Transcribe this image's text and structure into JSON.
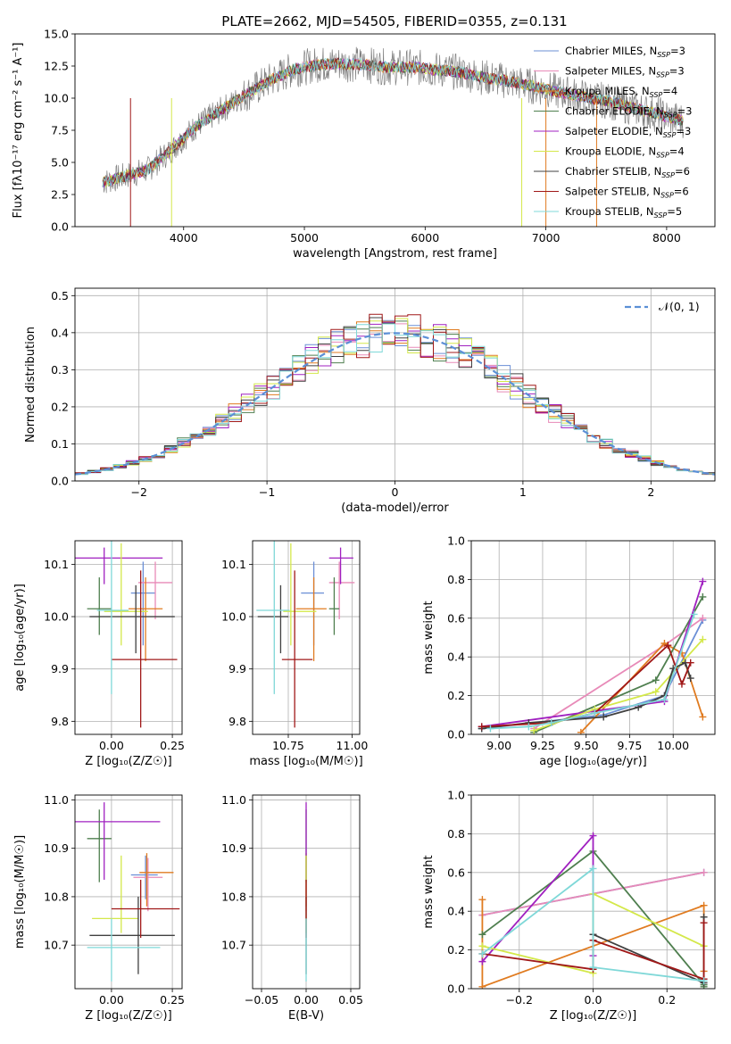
{
  "figure": {
    "title": "PLATE=2662, MJD=54505, FIBERID=0355, z=0.131"
  },
  "models": [
    {
      "name": "Chabrier MILES",
      "nssp": "3",
      "color": "#6b8fd6"
    },
    {
      "name": "Salpeter MILES",
      "nssp": "3",
      "color": "#e88ab8"
    },
    {
      "name": "Kroupa MILES",
      "nssp": "4",
      "color": "#e07b20"
    },
    {
      "name": "Chabrier ELODIE",
      "nssp": "3",
      "color": "#4f7f4f"
    },
    {
      "name": "Salpeter ELODIE",
      "nssp": "3",
      "color": "#a020c0"
    },
    {
      "name": "Kroupa ELODIE",
      "nssp": "4",
      "color": "#d4e84a"
    },
    {
      "name": "Chabrier STELIB",
      "nssp": "6",
      "color": "#404040"
    },
    {
      "name": "Salpeter STELIB",
      "nssp": "6",
      "color": "#a01818"
    },
    {
      "name": "Kroupa STELIB",
      "nssp": "5",
      "color": "#7fd8d8"
    }
  ],
  "chart_data": [
    {
      "type": "line",
      "panel": "spectrum",
      "title": "PLATE=2662, MJD=54505, FIBERID=0355, z=0.131",
      "xlabel": "wavelength [Angstrom, rest frame]",
      "ylabel": "Flux [fλ10⁻¹⁷ erg cm⁻² s⁻¹ A⁻¹]",
      "xlim": [
        3100,
        8400
      ],
      "ylim": [
        0,
        15
      ],
      "xticks": [
        "4000",
        "5000",
        "6000",
        "7000",
        "8000"
      ],
      "yticks": [
        "0.0",
        "2.5",
        "5.0",
        "7.5",
        "10.0",
        "12.5",
        "15.0"
      ],
      "legend": "top-right",
      "data_envelope": {
        "x": [
          3350,
          3500,
          3700,
          3900,
          4100,
          4300,
          4500,
          4700,
          4900,
          5100,
          5300,
          5500,
          5700,
          5900,
          6100,
          6300,
          6500,
          6700,
          6900,
          7100,
          7300,
          7500,
          7700,
          7900,
          8100
        ],
        "y": [
          3.5,
          3.9,
          4.4,
          6.0,
          7.8,
          9.0,
          10.2,
          11.3,
          12.2,
          12.6,
          12.7,
          12.6,
          12.4,
          12.4,
          12.2,
          12.0,
          11.6,
          11.3,
          10.9,
          10.5,
          10.1,
          9.8,
          9.3,
          8.8,
          8.3
        ]
      }
    },
    {
      "type": "line",
      "panel": "residual-histogram",
      "xlabel": "(data-model)/error",
      "ylabel": "Normed distribution",
      "xlim": [
        -2.5,
        2.5
      ],
      "ylim": [
        0,
        0.52
      ],
      "xticks": [
        "−2",
        "−1",
        "0",
        "1",
        "2"
      ],
      "yticks": [
        "0.0",
        "0.1",
        "0.2",
        "0.3",
        "0.4",
        "0.5"
      ],
      "grid": true,
      "legend": "top-right",
      "reference_curve": {
        "name": "𝒩(0, 1)",
        "mean": 0,
        "sigma": 1,
        "style": "dashed"
      }
    },
    {
      "type": "scatter",
      "panel": "age-vs-Z",
      "xlabel": "Z [log₁₀(Z/Z☉)]",
      "ylabel": "age  [log₁₀(age/yr)]",
      "xlim": [
        -0.15,
        0.29
      ],
      "ylim": [
        9.775,
        10.145
      ],
      "xticks": [
        "0.00",
        "0.25"
      ],
      "yticks": [
        "9.8",
        "9.9",
        "10.0",
        "10.1"
      ],
      "grid": true,
      "points": [
        {
          "model": "Chabrier MILES",
          "x": 0.13,
          "xerr": [
            0.05,
            0.05
          ],
          "y": 10.045,
          "yerr": [
            0.1,
            0.06
          ]
        },
        {
          "model": "Salpeter MILES",
          "x": 0.18,
          "xerr": [
            0.07,
            0.07
          ],
          "y": 10.065,
          "yerr": [
            0.07,
            0.04
          ]
        },
        {
          "model": "Kroupa MILES",
          "x": 0.14,
          "xerr": [
            0.07,
            0.07
          ],
          "y": 10.015,
          "yerr": [
            0.1,
            0.06
          ]
        },
        {
          "model": "Chabrier ELODIE",
          "x": -0.05,
          "xerr": [
            0.05,
            0.05
          ],
          "y": 10.015,
          "yerr": [
            0.05,
            0.06
          ]
        },
        {
          "model": "Salpeter ELODIE",
          "x": -0.03,
          "xerr": [
            0.13,
            0.24
          ],
          "y": 10.112,
          "yerr": [
            0.05,
            0.02
          ]
        },
        {
          "model": "Kroupa ELODIE",
          "x": 0.04,
          "xerr": [
            0.07,
            0.11
          ],
          "y": 10.01,
          "yerr": [
            0.065,
            0.13
          ]
        },
        {
          "model": "Chabrier STELIB",
          "x": 0.1,
          "xerr": [
            0.19,
            0.16
          ],
          "y": 10.0,
          "yerr": [
            0.07,
            0.06
          ]
        },
        {
          "model": "Salpeter STELIB",
          "x": 0.12,
          "xerr": [
            0.12,
            0.15
          ],
          "y": 9.918,
          "yerr": [
            0.13,
            0.17
          ]
        },
        {
          "model": "Kroupa STELIB",
          "x": 0.0,
          "xerr": [
            0.06,
            0.07
          ],
          "y": 10.012,
          "yerr": [
            0.16,
            0.15
          ]
        }
      ]
    },
    {
      "type": "scatter",
      "panel": "age-vs-mass",
      "xlabel": "mass [log₁₀(M/M☉)]",
      "ylabel": "",
      "xlim": [
        10.61,
        11.03
      ],
      "ylim": [
        9.775,
        10.145
      ],
      "xticks": [
        "10.75",
        "11.00"
      ],
      "yticks": [
        "9.8",
        "9.9",
        "10.0",
        "10.1"
      ],
      "grid": true,
      "points": [
        {
          "model": "Chabrier MILES",
          "x": 10.85,
          "xerr": [
            0.05,
            0.04
          ],
          "y": 10.045,
          "yerr": [
            0.1,
            0.06
          ]
        },
        {
          "model": "Salpeter MILES",
          "x": 10.95,
          "xerr": [
            0.04,
            0.06
          ],
          "y": 10.065,
          "yerr": [
            0.07,
            0.04
          ]
        },
        {
          "model": "Kroupa MILES",
          "x": 10.85,
          "xerr": [
            0.07,
            0.05
          ],
          "y": 10.015,
          "yerr": [
            0.1,
            0.06
          ]
        },
        {
          "model": "Chabrier ELODIE",
          "x": 10.93,
          "xerr": [
            0.02,
            0.02
          ],
          "y": 10.015,
          "yerr": [
            0.05,
            0.06
          ]
        },
        {
          "model": "Salpeter ELODIE",
          "x": 10.955,
          "xerr": [
            0.045,
            0.05
          ],
          "y": 10.112,
          "yerr": [
            0.05,
            0.02
          ]
        },
        {
          "model": "Kroupa ELODIE",
          "x": 10.76,
          "xerr": [
            0.03,
            0.1
          ],
          "y": 10.01,
          "yerr": [
            0.065,
            0.13
          ]
        },
        {
          "model": "Chabrier STELIB",
          "x": 10.72,
          "xerr": [
            0.09,
            0.03
          ],
          "y": 10.0,
          "yerr": [
            0.07,
            0.06
          ]
        },
        {
          "model": "Salpeter STELIB",
          "x": 10.775,
          "xerr": [
            0.05,
            0.07
          ],
          "y": 9.918,
          "yerr": [
            0.13,
            0.17
          ]
        },
        {
          "model": "Kroupa STELIB",
          "x": 10.695,
          "xerr": [
            0.07,
            0.06
          ],
          "y": 10.012,
          "yerr": [
            0.16,
            0.15
          ]
        }
      ]
    },
    {
      "type": "line",
      "panel": "massweight-vs-age",
      "xlabel": "age  [log₁₀(age/yr)]",
      "ylabel": "mass weight",
      "xlim": [
        8.84,
        10.24
      ],
      "ylim": [
        0,
        1
      ],
      "xticks": [
        "9.00",
        "9.25",
        "9.50",
        "9.75",
        "10.00"
      ],
      "yticks": [
        "0.0",
        "0.2",
        "0.4",
        "0.6",
        "0.8",
        "1.0"
      ],
      "grid": true,
      "series": [
        {
          "model": "Chabrier MILES",
          "x": [
            8.9,
            9.6,
            9.95,
            10.17
          ],
          "y": [
            0.03,
            0.1,
            0.2,
            0.59
          ]
        },
        {
          "model": "Salpeter MILES",
          "x": [
            9.2,
            9.95,
            10.17
          ],
          "y": [
            0.03,
            0.46,
            0.6
          ]
        },
        {
          "model": "Kroupa MILES",
          "x": [
            9.47,
            9.95,
            10.05,
            10.17
          ],
          "y": [
            0.01,
            0.47,
            0.42,
            0.09
          ]
        },
        {
          "model": "Chabrier ELODIE",
          "x": [
            9.2,
            9.9,
            10.17
          ],
          "y": [
            0.01,
            0.28,
            0.71
          ]
        },
        {
          "model": "Salpeter ELODIE",
          "x": [
            8.9,
            9.95,
            10.17
          ],
          "y": [
            0.04,
            0.17,
            0.79
          ]
        },
        {
          "model": "Kroupa ELODIE",
          "x": [
            9.2,
            9.55,
            9.9,
            10.17
          ],
          "y": [
            0.02,
            0.13,
            0.22,
            0.49
          ]
        },
        {
          "model": "Chabrier STELIB",
          "x": [
            8.9,
            9.17,
            9.6,
            9.8,
            9.95,
            10.0,
            10.07,
            10.1
          ],
          "y": [
            0.03,
            0.06,
            0.09,
            0.14,
            0.2,
            0.34,
            0.37,
            0.29
          ]
        },
        {
          "model": "Salpeter STELIB",
          "x": [
            8.9,
            9.3,
            9.55,
            9.97,
            10.05,
            10.1
          ],
          "y": [
            0.04,
            0.06,
            0.11,
            0.46,
            0.26,
            0.37
          ]
        },
        {
          "model": "Kroupa STELIB",
          "x": [
            8.95,
            9.17,
            9.3,
            9.55,
            9.95,
            10.12
          ],
          "y": [
            0.03,
            0.04,
            0.06,
            0.11,
            0.18,
            0.62
          ]
        }
      ]
    },
    {
      "type": "scatter",
      "panel": "mass-vs-Z",
      "xlabel": "Z [log₁₀(Z/Z☉)]",
      "ylabel": "mass [log₁₀(M/M☉)]",
      "xlim": [
        -0.15,
        0.29
      ],
      "ylim": [
        10.61,
        11.01
      ],
      "xticks": [
        "0.00",
        "0.25"
      ],
      "yticks": [
        "10.7",
        "10.8",
        "10.9",
        "11.0"
      ],
      "grid": true,
      "points": [
        {
          "model": "Chabrier MILES",
          "x": 0.14,
          "xerr": [
            0.06,
            0.05
          ],
          "y": 10.845,
          "yerr": [
            0.05,
            0.04
          ]
        },
        {
          "model": "Salpeter MILES",
          "x": 0.15,
          "xerr": [
            0.06,
            0.06
          ],
          "y": 10.84,
          "yerr": [
            0.07,
            0.04
          ]
        },
        {
          "model": "Kroupa MILES",
          "x": 0.145,
          "xerr": [
            0.03,
            0.11
          ],
          "y": 10.85,
          "yerr": [
            0.07,
            0.04
          ]
        },
        {
          "model": "Chabrier ELODIE",
          "x": -0.05,
          "xerr": [
            0.05,
            0.05
          ],
          "y": 10.92,
          "yerr": [
            0.09,
            0.06
          ]
        },
        {
          "model": "Salpeter ELODIE",
          "x": -0.03,
          "xerr": [
            0.13,
            0.23
          ],
          "y": 10.955,
          "yerr": [
            0.12,
            0.04
          ]
        },
        {
          "model": "Kroupa ELODIE",
          "x": 0.04,
          "xerr": [
            0.12,
            0.07
          ],
          "y": 10.755,
          "yerr": [
            0.03,
            0.13
          ]
        },
        {
          "model": "Chabrier STELIB",
          "x": 0.11,
          "xerr": [
            0.2,
            0.15
          ],
          "y": 10.72,
          "yerr": [
            0.08,
            0.08
          ]
        },
        {
          "model": "Salpeter STELIB",
          "x": 0.12,
          "xerr": [
            0.12,
            0.16
          ],
          "y": 10.775,
          "yerr": [
            0.06,
            0.06
          ]
        },
        {
          "model": "Kroupa STELIB",
          "x": 0.0,
          "xerr": [
            0.1,
            0.2
          ],
          "y": 10.695,
          "yerr": [
            0.07,
            0.06
          ]
        }
      ]
    },
    {
      "type": "scatter",
      "panel": "mass-vs-ebv",
      "xlabel": "E(B-V)",
      "ylabel": "",
      "xlim": [
        -0.06,
        0.06
      ],
      "ylim": [
        10.61,
        11.01
      ],
      "xticks": [
        "−0.05",
        "0.00",
        "0.05"
      ],
      "yticks": [
        "10.7",
        "10.8",
        "10.9",
        "11.0"
      ],
      "grid": true,
      "points": [
        {
          "model": "Chabrier MILES",
          "x": 0,
          "xerr": [
            0,
            0
          ],
          "y": 10.845,
          "yerr": [
            0.05,
            0.04
          ]
        },
        {
          "model": "Salpeter MILES",
          "x": 0,
          "xerr": [
            0,
            0
          ],
          "y": 10.84,
          "yerr": [
            0.07,
            0.04
          ]
        },
        {
          "model": "Kroupa MILES",
          "x": 0,
          "xerr": [
            0,
            0
          ],
          "y": 10.85,
          "yerr": [
            0.07,
            0.04
          ]
        },
        {
          "model": "Chabrier ELODIE",
          "x": 0,
          "xerr": [
            0,
            0
          ],
          "y": 10.92,
          "yerr": [
            0.09,
            0.06
          ]
        },
        {
          "model": "Salpeter ELODIE",
          "x": 0,
          "xerr": [
            0,
            0
          ],
          "y": 10.955,
          "yerr": [
            0.12,
            0.04
          ]
        },
        {
          "model": "Kroupa ELODIE",
          "x": 0,
          "xerr": [
            0,
            0
          ],
          "y": 10.755,
          "yerr": [
            0.03,
            0.13
          ]
        },
        {
          "model": "Chabrier STELIB",
          "x": 0,
          "xerr": [
            0,
            0
          ],
          "y": 10.72,
          "yerr": [
            0.08,
            0.08
          ]
        },
        {
          "model": "Salpeter STELIB",
          "x": 0,
          "xerr": [
            0,
            0
          ],
          "y": 10.775,
          "yerr": [
            0.06,
            0.06
          ]
        },
        {
          "model": "Kroupa STELIB",
          "x": 0,
          "xerr": [
            0,
            0
          ],
          "y": 10.695,
          "yerr": [
            0.07,
            0.06
          ]
        }
      ]
    },
    {
      "type": "line",
      "panel": "massweight-vs-Z",
      "xlabel": "Z [log₁₀(Z/Z☉)]",
      "ylabel": "mass weight",
      "xlim": [
        -0.33,
        0.33
      ],
      "ylim": [
        0,
        1
      ],
      "xticks": [
        "−0.2",
        "0.0",
        "0.2"
      ],
      "yticks": [
        "0.0",
        "0.2",
        "0.4",
        "0.6",
        "0.8",
        "1.0"
      ],
      "grid": true,
      "series": [
        {
          "model": "Chabrier MILES",
          "x": [
            -0.3,
            0.3
          ],
          "y": [
            0.38,
            0.6
          ]
        },
        {
          "model": "Salpeter MILES",
          "x": [
            -0.3,
            0.3
          ],
          "y": [
            0.38,
            0.6
          ]
        },
        {
          "model": "Kroupa MILES",
          "x": [
            -0.3,
            -0.3,
            0.3,
            0.3
          ],
          "y": [
            0.46,
            0.01,
            0.43,
            0.09
          ]
        },
        {
          "model": "Chabrier ELODIE",
          "x": [
            -0.3,
            0.0,
            0.3,
            0.3
          ],
          "y": [
            0.28,
            0.71,
            0.02,
            0.01
          ]
        },
        {
          "model": "Salpeter ELODIE",
          "x": [
            -0.3,
            0.0,
            0.0
          ],
          "y": [
            0.14,
            0.79,
            0.17
          ]
        },
        {
          "model": "Kroupa ELODIE",
          "x": [
            -0.3,
            0.0,
            0.0,
            0.3
          ],
          "y": [
            0.22,
            0.08,
            0.49,
            0.22
          ]
        },
        {
          "model": "Chabrier STELIB",
          "x": [
            0.0,
            0.3,
            0.3
          ],
          "y": [
            0.28,
            0.03,
            0.37
          ]
        },
        {
          "model": "Salpeter STELIB",
          "x": [
            -0.3,
            0.0,
            0.0,
            0.3,
            0.3
          ],
          "y": [
            0.18,
            0.1,
            0.25,
            0.05,
            0.34
          ]
        },
        {
          "model": "Kroupa STELIB",
          "x": [
            -0.3,
            0.0,
            0.0,
            0.3
          ],
          "y": [
            0.18,
            0.62,
            0.11,
            0.04
          ]
        }
      ]
    }
  ]
}
